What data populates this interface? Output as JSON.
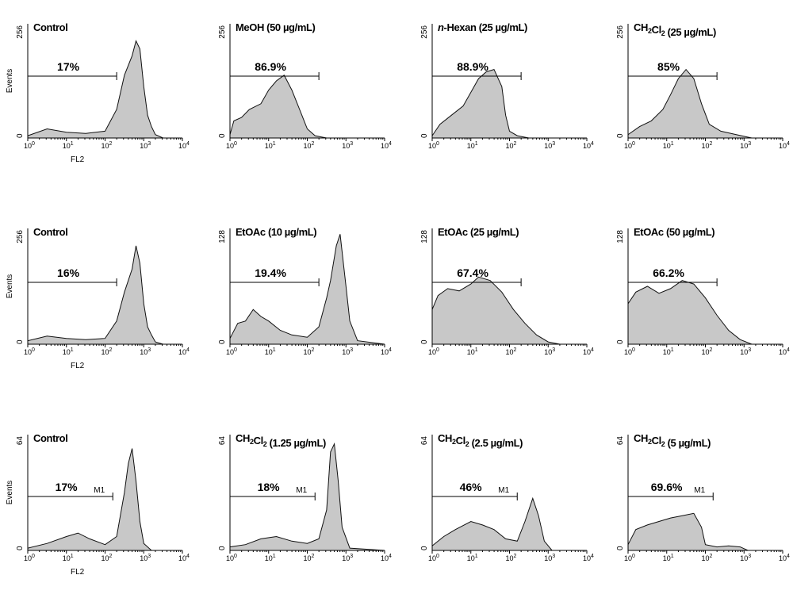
{
  "chart_data": [
    {
      "type": "area",
      "title": "Control",
      "title_parts": [
        {
          "t": "Control"
        }
      ],
      "ymax_label": "256",
      "yzero_label": "0",
      "ylabel": "Events",
      "xlabel": "FL2",
      "gate_percent": "17%",
      "gate_label": "",
      "gate_range_decades": [
        0,
        2.3
      ],
      "x_ticks": [
        "10",
        "10",
        "10",
        "10",
        "10"
      ],
      "x_tick_exponents": [
        "0",
        "1",
        "2",
        "3",
        "4"
      ],
      "x_decades": [
        0,
        0.5,
        1,
        1.5,
        2,
        2.3,
        2.5,
        2.7,
        2.8,
        2.9,
        3,
        3.1,
        3.2,
        3.3,
        3.5,
        4
      ],
      "y_fraction": [
        0.02,
        0.08,
        0.05,
        0.04,
        0.06,
        0.25,
        0.55,
        0.72,
        0.85,
        0.78,
        0.45,
        0.2,
        0.1,
        0.03,
        0,
        0
      ]
    },
    {
      "type": "area",
      "title": "MeOH (50 µg/mL)",
      "title_parts": [
        {
          "t": "MeOH (50 µg/mL)"
        }
      ],
      "ymax_label": "256",
      "yzero_label": "0",
      "ylabel": "",
      "xlabel": "",
      "gate_percent": "86.9%",
      "gate_label": "",
      "gate_range_decades": [
        0,
        2.3
      ],
      "x_ticks": [
        "10",
        "10",
        "10",
        "10",
        "10"
      ],
      "x_tick_exponents": [
        "0",
        "1",
        "2",
        "3",
        "4"
      ],
      "x_decades": [
        0,
        0.1,
        0.3,
        0.5,
        0.8,
        1,
        1.2,
        1.4,
        1.6,
        1.8,
        2,
        2.2,
        2.5,
        4
      ],
      "y_fraction": [
        0.03,
        0.15,
        0.18,
        0.25,
        0.3,
        0.42,
        0.5,
        0.55,
        0.42,
        0.25,
        0.08,
        0.02,
        0,
        0
      ]
    },
    {
      "type": "area",
      "title": "n-Hexan (25 µg/mL)",
      "title_parts": [
        {
          "t": "n",
          "i": true
        },
        {
          "t": "-Hexan (25 µg/mL)"
        }
      ],
      "ymax_label": "256",
      "yzero_label": "0",
      "ylabel": "",
      "xlabel": "",
      "gate_percent": "88.9%",
      "gate_label": "",
      "gate_range_decades": [
        0,
        2.3
      ],
      "x_ticks": [
        "10",
        "10",
        "10",
        "10",
        "10"
      ],
      "x_tick_exponents": [
        "0",
        "1",
        "2",
        "3",
        "4"
      ],
      "x_decades": [
        0,
        0.2,
        0.5,
        0.8,
        1,
        1.2,
        1.4,
        1.6,
        1.8,
        1.9,
        2,
        2.2,
        2.5,
        4
      ],
      "y_fraction": [
        0.02,
        0.12,
        0.2,
        0.28,
        0.4,
        0.52,
        0.58,
        0.6,
        0.45,
        0.2,
        0.06,
        0.02,
        0,
        0
      ]
    },
    {
      "type": "area",
      "title": "CH2Cl2 (25 µg/mL)",
      "title_parts": [
        {
          "t": "CH"
        },
        {
          "t": "2",
          "sub": true
        },
        {
          "t": "Cl"
        },
        {
          "t": "2",
          "sub": true
        },
        {
          "t": " (25 µg/mL)"
        }
      ],
      "ymax_label": "256",
      "yzero_label": "0",
      "ylabel": "",
      "xlabel": "",
      "gate_percent": "85%",
      "gate_label": "",
      "gate_range_decades": [
        0,
        2.3
      ],
      "x_ticks": [
        "10",
        "10",
        "10",
        "10",
        "10"
      ],
      "x_tick_exponents": [
        "0",
        "1",
        "2",
        "3",
        "4"
      ],
      "x_decades": [
        0,
        0.3,
        0.6,
        0.9,
        1.1,
        1.3,
        1.5,
        1.7,
        1.9,
        2.1,
        2.4,
        2.8,
        3.2,
        4
      ],
      "y_fraction": [
        0.03,
        0.1,
        0.15,
        0.25,
        0.38,
        0.52,
        0.6,
        0.52,
        0.3,
        0.12,
        0.06,
        0.03,
        0,
        0
      ]
    },
    {
      "type": "area",
      "title": "Control",
      "title_parts": [
        {
          "t": "Control"
        }
      ],
      "ymax_label": "256",
      "yzero_label": "0",
      "ylabel": "Events",
      "xlabel": "FL2",
      "gate_percent": "16%",
      "gate_label": "",
      "gate_range_decades": [
        0,
        2.3
      ],
      "x_decades": [
        0,
        0.5,
        1,
        1.5,
        2,
        2.3,
        2.5,
        2.7,
        2.8,
        2.9,
        3,
        3.1,
        3.2,
        3.3,
        3.5,
        4
      ],
      "y_fraction": [
        0.03,
        0.07,
        0.05,
        0.04,
        0.05,
        0.2,
        0.45,
        0.65,
        0.85,
        0.7,
        0.35,
        0.15,
        0.08,
        0.02,
        0,
        0
      ]
    },
    {
      "type": "area",
      "title": "EtOAc (10 µg/mL)",
      "title_parts": [
        {
          "t": "EtOAc (10 µg/mL)"
        }
      ],
      "ymax_label": "128",
      "yzero_label": "0",
      "ylabel": "",
      "xlabel": "",
      "gate_percent": "19.4%",
      "gate_label": "",
      "gate_range_decades": [
        0,
        2.3
      ],
      "x_decades": [
        0,
        0.2,
        0.4,
        0.6,
        0.8,
        1,
        1.3,
        1.6,
        2,
        2.3,
        2.5,
        2.6,
        2.75,
        2.85,
        3,
        3.1,
        3.3,
        4
      ],
      "y_fraction": [
        0.05,
        0.18,
        0.2,
        0.3,
        0.24,
        0.2,
        0.12,
        0.08,
        0.06,
        0.15,
        0.4,
        0.55,
        0.85,
        0.95,
        0.5,
        0.2,
        0.03,
        0
      ]
    },
    {
      "type": "area",
      "title": "EtOAc (25 µg/mL)",
      "title_parts": [
        {
          "t": "EtOAc (25 µg/mL)"
        }
      ],
      "ymax_label": "128",
      "yzero_label": "0",
      "ylabel": "",
      "xlabel": "",
      "gate_percent": "67.4%",
      "gate_label": "",
      "gate_range_decades": [
        0,
        2.3
      ],
      "x_decades": [
        0,
        0.15,
        0.4,
        0.7,
        1,
        1.2,
        1.5,
        1.8,
        2.1,
        2.4,
        2.7,
        3,
        3.3,
        4
      ],
      "y_fraction": [
        0.3,
        0.42,
        0.48,
        0.46,
        0.52,
        0.58,
        0.55,
        0.45,
        0.3,
        0.18,
        0.08,
        0.02,
        0,
        0
      ]
    },
    {
      "type": "area",
      "title": "EtOAc (50 µg/mL)",
      "title_parts": [
        {
          "t": "EtOAc (50 µg/mL)"
        }
      ],
      "ymax_label": "128",
      "yzero_label": "0",
      "ylabel": "",
      "xlabel": "",
      "gate_percent": "66.2%",
      "gate_label": "",
      "gate_range_decades": [
        0,
        2.3
      ],
      "x_decades": [
        0,
        0.2,
        0.5,
        0.8,
        1.1,
        1.4,
        1.7,
        2,
        2.3,
        2.6,
        2.9,
        3.2,
        4
      ],
      "y_fraction": [
        0.35,
        0.45,
        0.5,
        0.44,
        0.48,
        0.55,
        0.52,
        0.4,
        0.25,
        0.12,
        0.04,
        0,
        0
      ]
    },
    {
      "type": "area",
      "title": "Control",
      "title_parts": [
        {
          "t": "Control"
        }
      ],
      "ymax_label": "64",
      "yzero_label": "0",
      "ylabel": "Events",
      "xlabel": "FL2",
      "gate_percent": "17%",
      "gate_label": "M1",
      "gate_range_decades": [
        0,
        2.2
      ],
      "x_decades": [
        0,
        0.5,
        1,
        1.3,
        1.6,
        2,
        2.3,
        2.5,
        2.6,
        2.7,
        2.8,
        2.9,
        3,
        3.2,
        4
      ],
      "y_fraction": [
        0.02,
        0.06,
        0.12,
        0.15,
        0.1,
        0.05,
        0.12,
        0.5,
        0.75,
        0.88,
        0.6,
        0.25,
        0.06,
        0,
        0
      ]
    },
    {
      "type": "area",
      "title": "CH2Cl2 (1.25 µg/mL)",
      "title_parts": [
        {
          "t": "CH"
        },
        {
          "t": "2",
          "sub": true
        },
        {
          "t": "Cl"
        },
        {
          "t": "2",
          "sub": true
        },
        {
          "t": " (1.25 µg/mL)"
        }
      ],
      "ymax_label": "64",
      "yzero_label": "0",
      "ylabel": "",
      "xlabel": "",
      "gate_percent": "18%",
      "gate_label": "M1",
      "gate_range_decades": [
        0,
        2.2
      ],
      "x_decades": [
        0,
        0.4,
        0.8,
        1.2,
        1.6,
        2,
        2.3,
        2.5,
        2.6,
        2.7,
        2.8,
        2.9,
        3.1,
        4
      ],
      "y_fraction": [
        0.03,
        0.05,
        0.1,
        0.12,
        0.08,
        0.06,
        0.1,
        0.35,
        0.85,
        0.92,
        0.6,
        0.2,
        0.02,
        0
      ]
    },
    {
      "type": "area",
      "title": "CH2Cl2 (2.5 µg/mL)",
      "title_parts": [
        {
          "t": "CH"
        },
        {
          "t": "2",
          "sub": true
        },
        {
          "t": "Cl"
        },
        {
          "t": "2",
          "sub": true
        },
        {
          "t": " (2.5 µg/mL)"
        }
      ],
      "ymax_label": "64",
      "yzero_label": "0",
      "ylabel": "",
      "xlabel": "",
      "gate_percent": "46%",
      "gate_label": "M1",
      "gate_range_decades": [
        0,
        2.2
      ],
      "x_decades": [
        0,
        0.3,
        0.6,
        1,
        1.3,
        1.6,
        1.9,
        2.2,
        2.4,
        2.6,
        2.75,
        2.9,
        3.1,
        4
      ],
      "y_fraction": [
        0.04,
        0.12,
        0.18,
        0.25,
        0.22,
        0.18,
        0.1,
        0.08,
        0.25,
        0.45,
        0.3,
        0.08,
        0,
        0
      ]
    },
    {
      "type": "area",
      "title": "CH2Cl2 (5 µg/mL)",
      "title_parts": [
        {
          "t": "CH"
        },
        {
          "t": "2",
          "sub": true
        },
        {
          "t": "Cl"
        },
        {
          "t": "2",
          "sub": true
        },
        {
          "t": " (5 µg/mL)"
        }
      ],
      "ymax_label": "64",
      "yzero_label": "0",
      "ylabel": "",
      "xlabel": "",
      "gate_percent": "69.6%",
      "gate_label": "M1",
      "gate_range_decades": [
        0,
        2.2
      ],
      "x_decades": [
        0,
        0.2,
        0.5,
        0.8,
        1.1,
        1.4,
        1.7,
        1.9,
        2,
        2.3,
        2.6,
        2.9,
        3.1,
        4
      ],
      "y_fraction": [
        0.05,
        0.18,
        0.22,
        0.25,
        0.28,
        0.3,
        0.32,
        0.2,
        0.05,
        0.03,
        0.04,
        0.03,
        0,
        0
      ]
    }
  ],
  "x_tick_base": "10",
  "x_tick_exponents": [
    "0",
    "1",
    "2",
    "3",
    "4"
  ],
  "colors": {
    "fill": "#c8c8c8",
    "line": "#111111"
  }
}
